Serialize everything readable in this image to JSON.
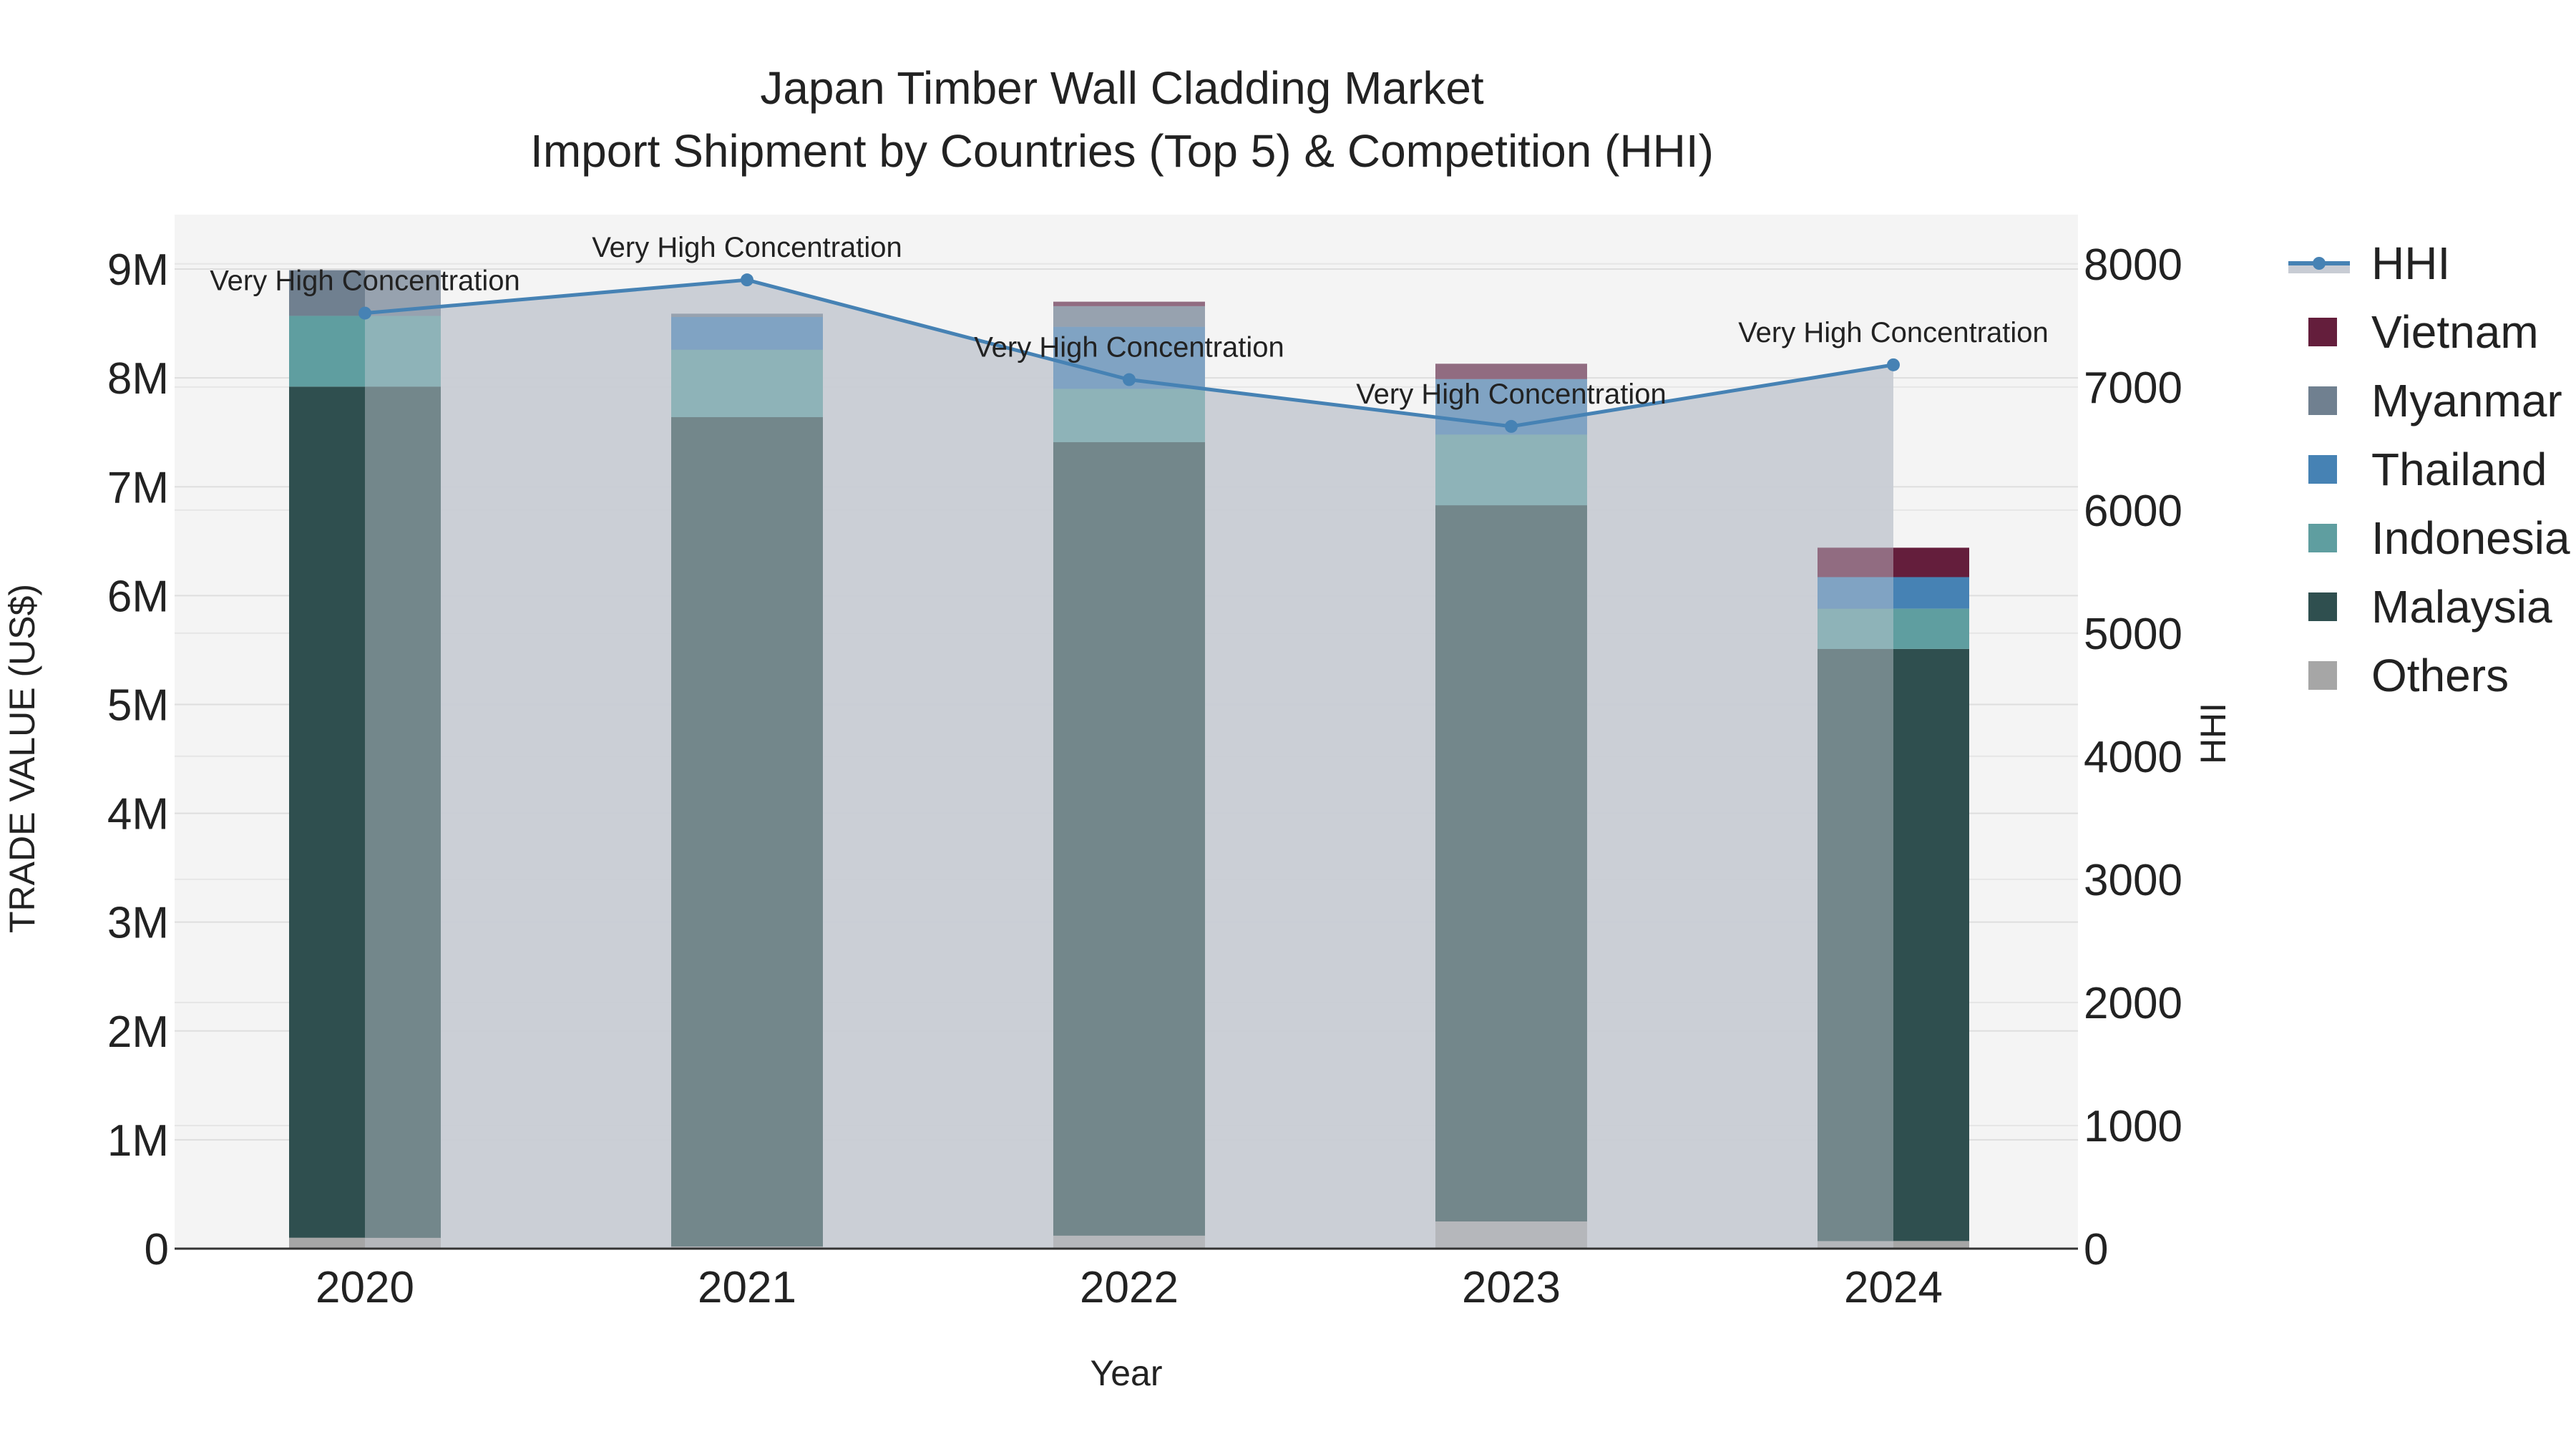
{
  "chart_data": {
    "type": "bar",
    "title_line1": "Japan Timber Wall Cladding Market",
    "title_line2": "Import Shipment by Countries (Top 5) & Competition (HHI)",
    "xlabel": "Year",
    "ylabel": "TRADE VALUE (US$)",
    "y2label": "HHI",
    "categories": [
      "2020",
      "2021",
      "2022",
      "2023",
      "2024"
    ],
    "ylim": [
      0,
      9500000
    ],
    "y_ticks": [
      0,
      1000000,
      2000000,
      3000000,
      4000000,
      5000000,
      6000000,
      7000000,
      8000000,
      9000000
    ],
    "y_tick_labels": [
      "0",
      "1M",
      "2M",
      "3M",
      "4M",
      "5M",
      "6M",
      "7M",
      "8M",
      "9M"
    ],
    "y2lim": [
      0,
      8400
    ],
    "y2_ticks": [
      0,
      1000,
      2000,
      3000,
      4000,
      5000,
      6000,
      7000,
      8000
    ],
    "y2_tick_labels": [
      "0",
      "1000",
      "2000",
      "3000",
      "4000",
      "5000",
      "6000",
      "7000",
      "8000"
    ],
    "series": [
      {
        "name": "Others",
        "color": "#a6a6a6",
        "values": [
          100000,
          20000,
          120000,
          250000,
          70000
        ]
      },
      {
        "name": "Malaysia",
        "color": "#2f4f4f",
        "values": [
          7820000,
          7620000,
          7290000,
          6580000,
          5440000
        ]
      },
      {
        "name": "Indonesia",
        "color": "#5f9ea0",
        "values": [
          650000,
          620000,
          490000,
          650000,
          370000
        ]
      },
      {
        "name": "Thailand",
        "color": "#4682b4",
        "values": [
          0,
          300000,
          570000,
          510000,
          290000
        ]
      },
      {
        "name": "Myanmar",
        "color": "#708090",
        "values": [
          420000,
          30000,
          190000,
          0,
          0
        ]
      },
      {
        "name": "Vietnam",
        "color": "#641e3c",
        "values": [
          0,
          0,
          40000,
          140000,
          270000
        ]
      }
    ],
    "hhi": {
      "name": "HHI",
      "color": "#4682b4",
      "values": [
        7600,
        7870,
        7060,
        6680,
        7180
      ],
      "annotations": [
        "Very High Concentration",
        "Very High Concentration",
        "Very High Concentration",
        "Very High Concentration",
        "Very High Concentration"
      ]
    },
    "legend": {
      "position": "right",
      "items": [
        {
          "name": "HHI",
          "color": "#4682b4"
        },
        {
          "name": "Vietnam",
          "color": "#641e3c"
        },
        {
          "name": "Myanmar",
          "color": "#708090"
        },
        {
          "name": "Thailand",
          "color": "#4682b4"
        },
        {
          "name": "Indonesia",
          "color": "#5f9ea0"
        },
        {
          "name": "Malaysia",
          "color": "#2f4f4f"
        },
        {
          "name": "Others",
          "color": "#a6a6a6"
        }
      ]
    },
    "plot_background": "#f4f4f4",
    "hhi_fill_color": "#c8ccd4"
  }
}
